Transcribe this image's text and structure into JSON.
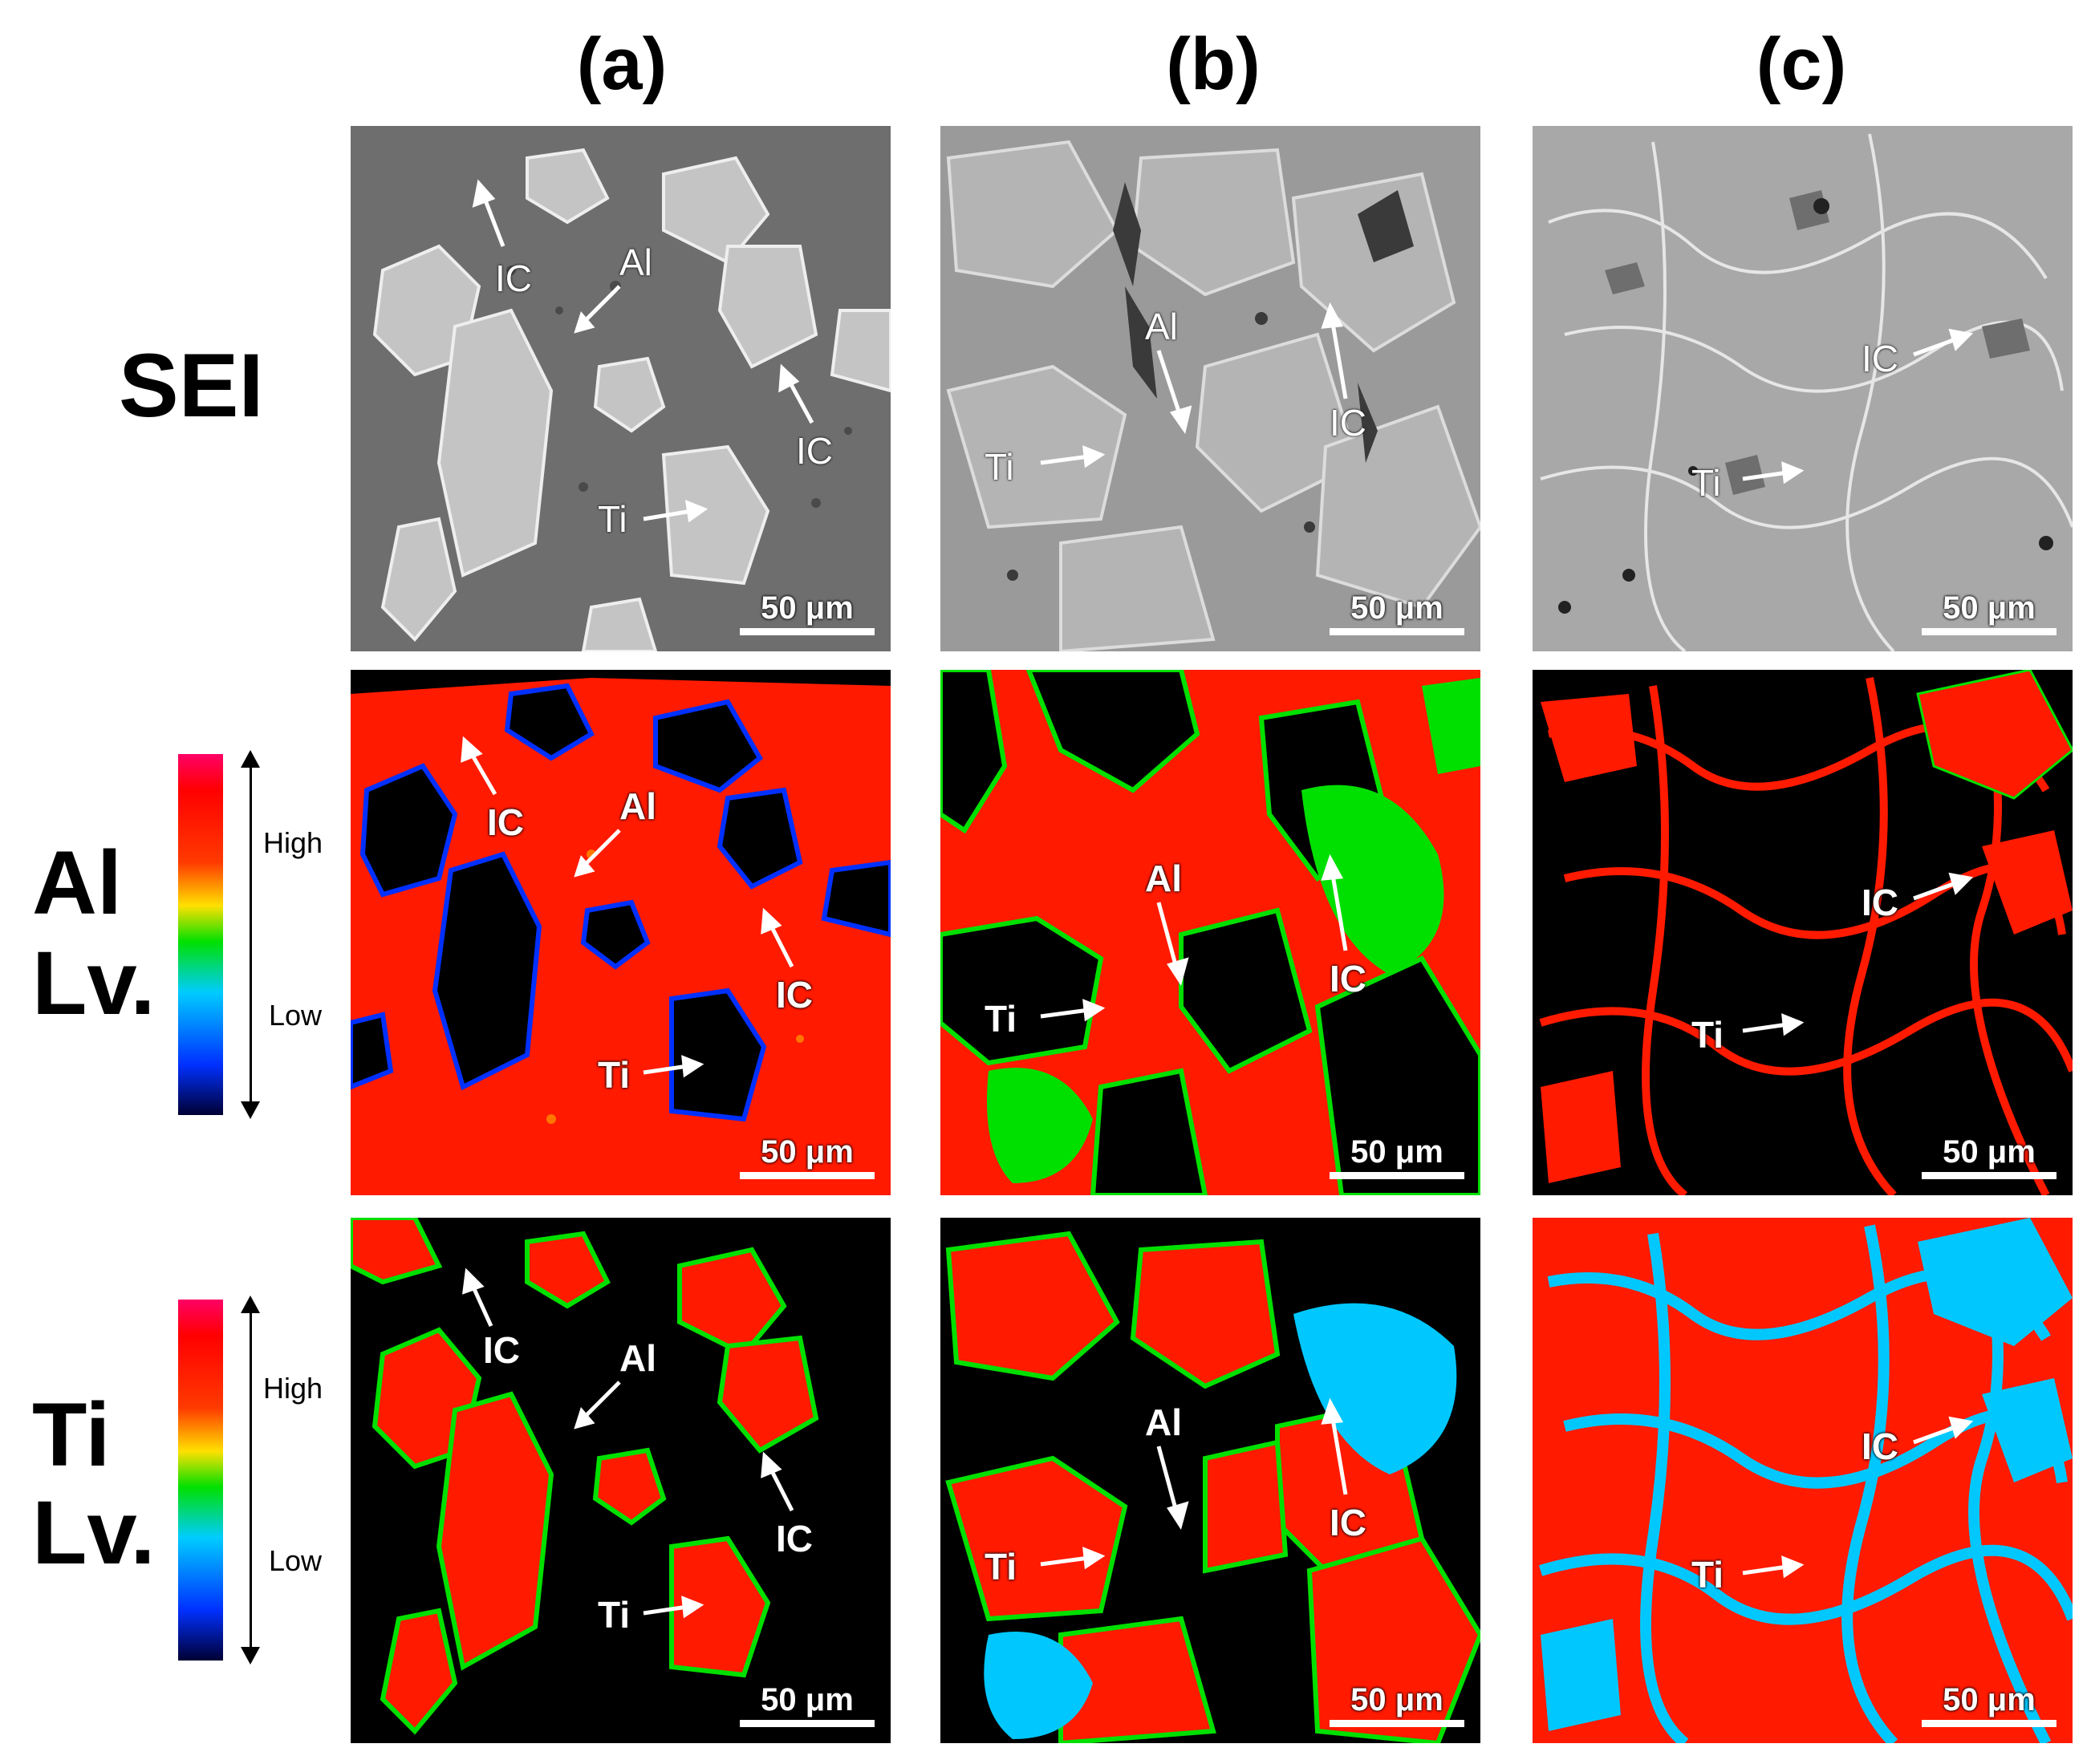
{
  "columns": [
    "(a)",
    "(b)",
    "(c)"
  ],
  "rows": {
    "sei": "SEI",
    "al": [
      "Al",
      "Lv."
    ],
    "ti": [
      "Ti",
      "Lv."
    ]
  },
  "legend": {
    "high": "High",
    "low": "Low"
  },
  "scalebar": "50 μm",
  "labels": {
    "ic": "IC",
    "al": "Al",
    "ti": "Ti"
  },
  "colors": {
    "map_background": "#000000",
    "high": "#ff1a00",
    "mid": "#00e000",
    "low": "#0030ff",
    "sei_gray": "#8a8a8a"
  }
}
